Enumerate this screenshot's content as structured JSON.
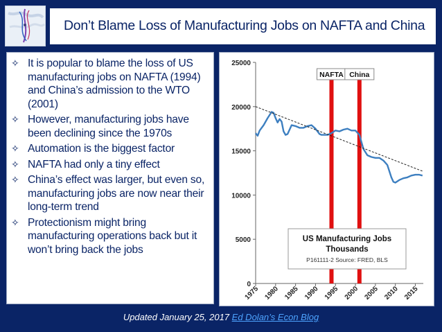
{
  "slide": {
    "title": "Don’t Blame Loss of Manufacturing Jobs on NAFTA and China",
    "bullet_marker": "✧",
    "bullets": [
      "It is popular to blame the loss of US manufacturing jobs on NAFTA (1994) and China’s admission to the WTO (2001)",
      "However, manufacturing jobs have been declining since the 1970s",
      "Automation is the biggest factor",
      "NAFTA had only a tiny effect",
      "China’s effect was larger, but even so, manufacturing jobs are now near their long-term trend",
      "Protectionism might bring manufacturing operations back but it won’t bring back the jobs"
    ],
    "footer_text": "Updated January 25, 2017",
    "footer_link": "Ed Dolan’s Econ Blog"
  },
  "colors": {
    "background": "#0a2466",
    "series": "#3d7fc0",
    "event_bar": "#e01010",
    "trend": "#222222"
  },
  "chart_data": {
    "type": "line",
    "title": "US Manufacturing Jobs",
    "subtitle": "Thousands",
    "source": "P161111-2 Source: FRED, BLS",
    "xlabel": "",
    "ylabel": "",
    "xlim": [
      1975,
      2017
    ],
    "ylim": [
      0,
      25000
    ],
    "y_ticks": [
      0,
      5000,
      10000,
      15000,
      20000,
      25000
    ],
    "x_ticks": [
      1975,
      1980,
      1985,
      1990,
      1995,
      2000,
      2005,
      2010,
      2015
    ],
    "grid": false,
    "series": [
      {
        "name": "US Manufacturing Jobs",
        "x": [
          1975,
          1975.5,
          1976,
          1977,
          1978,
          1979,
          1979.5,
          1980,
          1980.5,
          1981,
          1981.5,
          1982,
          1982.5,
          1983,
          1984,
          1985,
          1986,
          1987,
          1988,
          1989,
          1990,
          1991,
          1991.5,
          1992,
          1993,
          1994,
          1995,
          1996,
          1997,
          1998,
          1999,
          2000,
          2001,
          2001.5,
          2002,
          2003,
          2004,
          2005,
          2006,
          2007,
          2008,
          2009,
          2009.5,
          2010,
          2011,
          2012,
          2013,
          2014,
          2015,
          2016,
          2016.8
        ],
        "values": [
          17000,
          16700,
          17300,
          17900,
          18700,
          19400,
          19300,
          18700,
          18200,
          18600,
          18300,
          17200,
          16800,
          16900,
          17900,
          17800,
          17600,
          17600,
          17800,
          17900,
          17500,
          16900,
          16800,
          16800,
          16800,
          17000,
          17300,
          17200,
          17400,
          17500,
          17300,
          17300,
          16800,
          16000,
          15200,
          14500,
          14300,
          14200,
          14200,
          13900,
          13400,
          12000,
          11500,
          11400,
          11700,
          11900,
          12000,
          12200,
          12300,
          12300,
          12200
        ]
      },
      {
        "name": "Trend",
        "x": [
          1975,
          2016.8
        ],
        "values": [
          20000,
          12700
        ]
      }
    ],
    "event_markers": [
      {
        "label": "NAFTA",
        "x": 1994
      },
      {
        "label": "China",
        "x": 2001
      }
    ]
  }
}
